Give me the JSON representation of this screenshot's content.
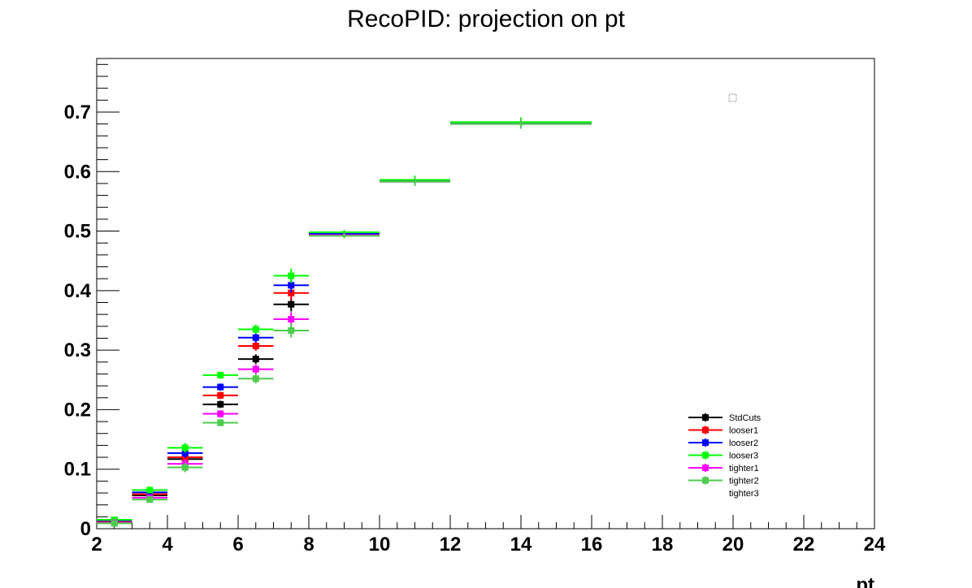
{
  "chart_data": {
    "type": "scatter",
    "title": "RecoPID: projection on pt",
    "xlabel": "pt",
    "ylabel": "",
    "xlim": [
      2,
      24
    ],
    "ylim": [
      0,
      0.79
    ],
    "x_ticks": [
      2,
      4,
      6,
      8,
      10,
      12,
      14,
      16,
      18,
      20,
      22,
      24
    ],
    "y_ticks": [
      0,
      0.1,
      0.2,
      0.3,
      0.4,
      0.5,
      0.6,
      0.7
    ],
    "grid": false,
    "legend_position": "bottom-right",
    "bins": [
      {
        "x": 2.5,
        "xerr": 0.5
      },
      {
        "x": 3.5,
        "xerr": 0.5
      },
      {
        "x": 4.5,
        "xerr": 0.5
      },
      {
        "x": 5.5,
        "xerr": 0.5
      },
      {
        "x": 6.5,
        "xerr": 0.5
      },
      {
        "x": 7.5,
        "xerr": 0.5
      },
      {
        "x": 9,
        "xerr": 1
      },
      {
        "x": 11,
        "xerr": 1
      },
      {
        "x": 14,
        "xerr": 2
      }
    ],
    "series": [
      {
        "name": "StdCuts",
        "color": "#000000",
        "values": [
          0.012,
          0.056,
          0.117,
          0.209,
          0.285,
          0.377,
          0.494,
          0.584,
          0.681
        ],
        "errors": [
          0.003,
          0.004,
          0.008,
          0.006,
          0.008,
          0.012,
          0.004,
          0.007,
          0.008
        ]
      },
      {
        "name": "looser1",
        "color": "#ff0000",
        "values": [
          0.013,
          0.058,
          0.12,
          0.224,
          0.307,
          0.396,
          0.495,
          0.585,
          0.682
        ],
        "errors": [
          0.003,
          0.004,
          0.008,
          0.006,
          0.008,
          0.012,
          0.004,
          0.007,
          0.008
        ]
      },
      {
        "name": "looser2",
        "color": "#0000ff",
        "values": [
          0.014,
          0.061,
          0.127,
          0.238,
          0.321,
          0.409,
          0.496,
          0.585,
          0.682
        ],
        "errors": [
          0.003,
          0.004,
          0.008,
          0.006,
          0.008,
          0.012,
          0.004,
          0.007,
          0.008
        ]
      },
      {
        "name": "looser3",
        "color": "#00ff00",
        "values": [
          0.015,
          0.065,
          0.136,
          0.258,
          0.335,
          0.425,
          0.498,
          0.586,
          0.683
        ],
        "errors": [
          0.003,
          0.004,
          0.008,
          0.006,
          0.008,
          0.012,
          0.004,
          0.007,
          0.008
        ]
      },
      {
        "name": "tighter1",
        "color": "#ff00ff",
        "values": [
          0.01,
          0.052,
          0.109,
          0.193,
          0.268,
          0.352,
          0.493,
          0.583,
          0.68
        ],
        "errors": [
          0.003,
          0.004,
          0.008,
          0.006,
          0.008,
          0.012,
          0.004,
          0.007,
          0.008
        ]
      },
      {
        "name": "tighter2",
        "color": "#4dcc4d",
        "values": [
          0.009,
          0.049,
          0.103,
          0.178,
          0.252,
          0.333,
          0.492,
          0.583,
          0.68
        ],
        "errors": [
          0.003,
          0.004,
          0.008,
          0.006,
          0.008,
          0.012,
          0.004,
          0.007,
          0.008
        ]
      },
      {
        "name": "tighter3",
        "color": "#ffffff",
        "values": [],
        "errors": []
      }
    ]
  }
}
